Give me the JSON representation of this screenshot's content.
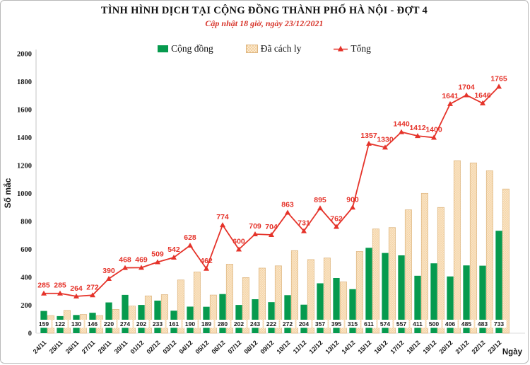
{
  "chart_data": {
    "type": "bar",
    "combo": "grouped bars with line overlay",
    "title": "TÌNH HÌNH DỊCH TẠI CỘNG ĐỒNG THÀNH PHỐ HÀ NỘI - ĐỢT 4",
    "subtitle": "Cập nhật 18 giờ, ngày 23/12/2021",
    "xlabel": "Ngày",
    "ylabel": "Số mắc",
    "ylim": [
      0,
      2000
    ],
    "ytick_step": 200,
    "grid": false,
    "legend_position": "top",
    "categories": [
      "24/11",
      "25/11",
      "26/11",
      "27/11",
      "29/11",
      "30/11",
      "01/12",
      "02/12",
      "03/12",
      "04/12",
      "05/12",
      "06/12",
      "07/12",
      "08/12",
      "09/12",
      "10/12",
      "11/12",
      "12/12",
      "13/12",
      "14/12",
      "15/12",
      "16/12",
      "17/12",
      "18/12",
      "19/12",
      "20/12",
      "21/12",
      "22/12",
      "23/12"
    ],
    "series": [
      {
        "name": "Cộng đồng",
        "type": "bar",
        "color": "#069a4e",
        "labels_shown": true,
        "values": [
          159,
          122,
          130,
          146,
          220,
          274,
          202,
          233,
          161,
          190,
          189,
          280,
          202,
          243,
          222,
          272,
          204,
          357,
          395,
          315,
          611,
          574,
          557,
          411,
          500,
          406,
          485,
          483,
          733
        ]
      },
      {
        "name": "Đã cách ly",
        "type": "bar",
        "color": "#f3d1a0",
        "pattern_dot_color": "#fbe9d0",
        "border_color": "#ddb47e",
        "labels_shown": false,
        "note": "bars unlabeled in chart; heights equal Tổng minus Cộng đồng",
        "values": [
          126,
          163,
          134,
          126,
          170,
          194,
          267,
          276,
          381,
          438,
          273,
          494,
          398,
          466,
          482,
          591,
          527,
          538,
          367,
          585,
          746,
          756,
          883,
          1001,
          900,
          1235,
          1219,
          1163,
          1032
        ]
      },
      {
        "name": "Tổng",
        "type": "line",
        "color": "#e5332a",
        "labels_shown": true,
        "values": [
          285,
          285,
          264,
          272,
          390,
          468,
          469,
          509,
          542,
          628,
          462,
          774,
          600,
          709,
          704,
          863,
          731,
          895,
          762,
          900,
          1357,
          1330,
          1440,
          1412,
          1400,
          1641,
          1704,
          1646,
          1765
        ]
      }
    ]
  }
}
